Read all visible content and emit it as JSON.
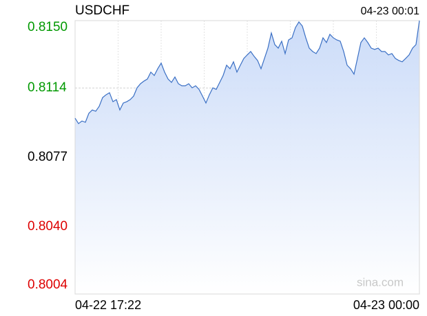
{
  "chart_data": {
    "type": "area",
    "title": "USDCHF",
    "timestamp": "04-23 00:01",
    "watermark": "sina.com",
    "color": "#3a6fc4",
    "fill_color": "#c9daf8",
    "grid": true,
    "tick_colors": [
      "#009900",
      "#009900",
      "#000000",
      "#dd0000",
      "#dd0000"
    ],
    "ylim": [
      0.8004,
      0.815
    ],
    "yticks": [
      {
        "value": 0.815,
        "label": "0.8150"
      },
      {
        "value": 0.8114,
        "label": "0.8114"
      },
      {
        "value": 0.8077,
        "label": "0.8077"
      },
      {
        "value": 0.804,
        "label": "0.8040"
      },
      {
        "value": 0.8004,
        "label": "0.8004"
      }
    ],
    "categories": [
      "04-22 17:22",
      null,
      null,
      null,
      null,
      null,
      null,
      null,
      null,
      null,
      null,
      null,
      null,
      null,
      null,
      null,
      null,
      null,
      null,
      null,
      null,
      null,
      null,
      null,
      null,
      null,
      null,
      null,
      null,
      null,
      null,
      null,
      null,
      null,
      null,
      null,
      null,
      null,
      null,
      null,
      null,
      null,
      null,
      null,
      null,
      null,
      null,
      null,
      null,
      null,
      null,
      null,
      null,
      null,
      null,
      null,
      null,
      null,
      null,
      null,
      null,
      null,
      null,
      null,
      null,
      null,
      null,
      null,
      null,
      null,
      null,
      null,
      null,
      null,
      null,
      null,
      null,
      null,
      null,
      null,
      null,
      null,
      null,
      null,
      null,
      null,
      null,
      null,
      null,
      null,
      null,
      null,
      null,
      null,
      null,
      null,
      null,
      null,
      null,
      null,
      "04-23 00:00"
    ],
    "values": [
      0.80979,
      0.8095,
      0.80964,
      0.80957,
      0.81005,
      0.81023,
      0.81016,
      0.81042,
      0.81089,
      0.81104,
      0.81115,
      0.81067,
      0.81078,
      0.81023,
      0.8106,
      0.81067,
      0.81078,
      0.81097,
      0.81141,
      0.81163,
      0.81177,
      0.81188,
      0.81225,
      0.81207,
      0.81243,
      0.81273,
      0.81225,
      0.81188,
      0.8117,
      0.81199,
      0.81163,
      0.81152,
      0.81152,
      0.81163,
      0.81141,
      0.81152,
      0.81133,
      0.81097,
      0.8106,
      0.81104,
      0.81141,
      0.81133,
      0.8117,
      0.81207,
      0.81262,
      0.81243,
      0.8128,
      0.81225,
      0.81262,
      0.81298,
      0.81317,
      0.81335,
      0.81309,
      0.81287,
      0.81243,
      0.81298,
      0.81353,
      0.81434,
      0.81372,
      0.81353,
      0.8139,
      0.81324,
      0.81397,
      0.81408,
      0.81463,
      0.81493,
      0.81471,
      0.81408,
      0.81353,
      0.81335,
      0.81324,
      0.81353,
      0.81408,
      0.81383,
      0.81427,
      0.81408,
      0.81397,
      0.8139,
      0.81335,
      0.81262,
      0.81243,
      0.81214,
      0.81298,
      0.81383,
      0.81408,
      0.81383,
      0.81353,
      0.81346,
      0.81353,
      0.81335,
      0.81335,
      0.81317,
      0.81324,
      0.81298,
      0.81287,
      0.8128,
      0.81298,
      0.81317,
      0.81353,
      0.81372,
      0.815
    ]
  }
}
